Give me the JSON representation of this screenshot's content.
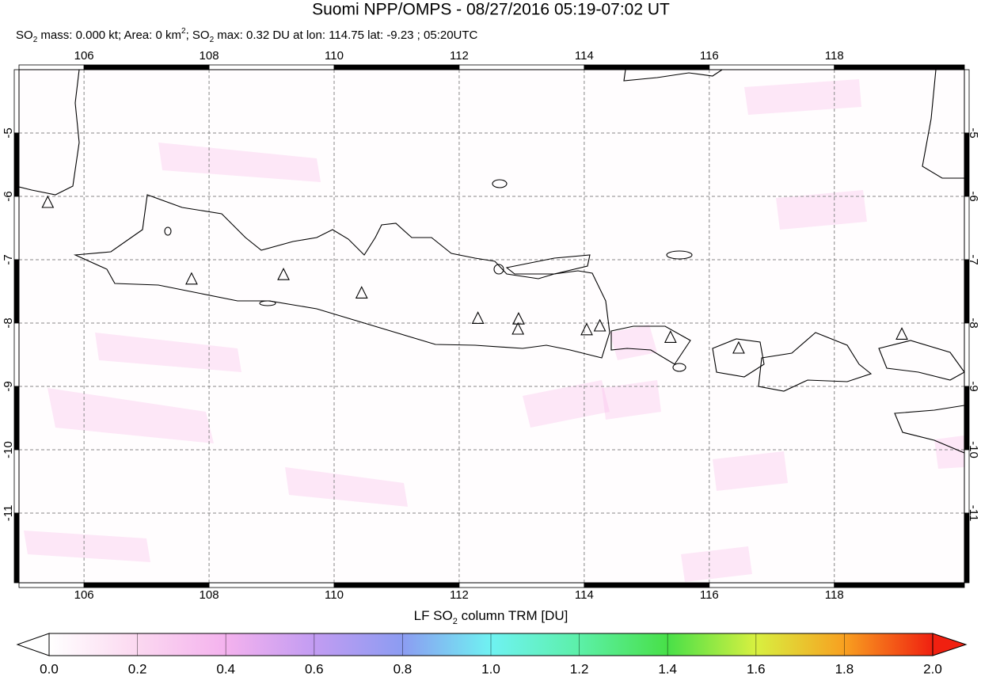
{
  "title": "Suomi NPP/OMPS - 08/27/2016 05:19-07:02 UT",
  "subtitle": [
    "SO",
    "2",
    " mass: 0.000 kt; Area: 0 km",
    "2",
    "; SO",
    "2",
    " max: 0.32 DU at lon: 114.75 lat: -9.23 ; 05:20UTC"
  ],
  "map": {
    "lonlim": [
      104.96,
      120.08
    ],
    "latlim": [
      -4.0,
      -12.1
    ],
    "lonticks": [
      106,
      108,
      110,
      112,
      114,
      116,
      118
    ],
    "latticks": [
      -5,
      -6,
      -7,
      -8,
      -9,
      -10,
      -11
    ],
    "volcanoes": [
      [
        105.42,
        -6.1
      ],
      [
        107.72,
        -7.31
      ],
      [
        109.19,
        -7.24
      ],
      [
        110.44,
        -7.53
      ],
      [
        112.3,
        -7.93
      ],
      [
        112.95,
        -7.94
      ],
      [
        112.94,
        -8.1
      ],
      [
        114.04,
        -8.11
      ],
      [
        114.25,
        -8.05
      ],
      [
        115.38,
        -8.23
      ],
      [
        116.47,
        -8.4
      ],
      [
        119.08,
        -8.18
      ]
    ]
  },
  "colorbar": {
    "label": [
      "LF SO",
      "2",
      " column TRM [DU]"
    ],
    "lim": [
      0,
      2
    ],
    "ticks": [
      {
        "value": 0,
        "label": "0.0"
      },
      {
        "value": 0.2,
        "label": "0.2"
      },
      {
        "value": 0.4,
        "label": "0.4"
      },
      {
        "value": 0.6,
        "label": "0.6"
      },
      {
        "value": 0.8,
        "label": "0.8"
      },
      {
        "value": 1,
        "label": "1.0"
      },
      {
        "value": 1.2,
        "label": "1.2"
      },
      {
        "value": 1.4,
        "label": "1.4"
      },
      {
        "value": 1.6,
        "label": "1.6"
      },
      {
        "value": 1.8,
        "label": "1.8"
      },
      {
        "value": 2,
        "label": "2.0"
      }
    ]
  }
}
